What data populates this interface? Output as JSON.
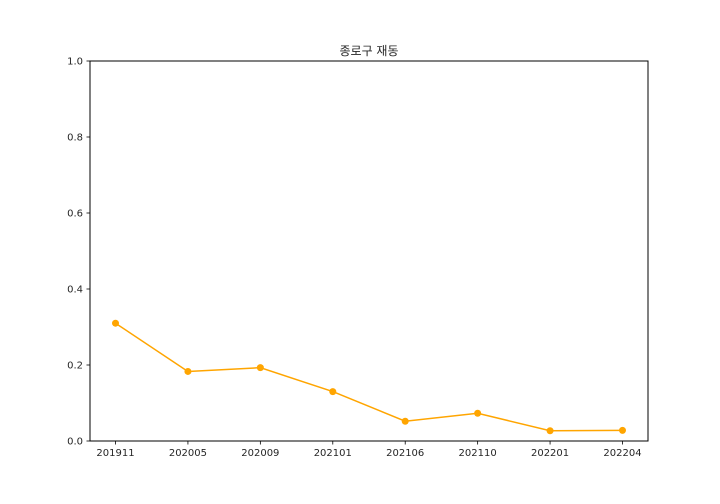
{
  "chart_data": {
    "type": "line",
    "title": "종로구 재동",
    "xlabel": "",
    "ylabel": "",
    "categories": [
      "201911",
      "202005",
      "202009",
      "202101",
      "202106",
      "202110",
      "202201",
      "202204"
    ],
    "series": [
      {
        "values": [
          0.31,
          0.183,
          0.193,
          0.13,
          0.052,
          0.073,
          0.027,
          0.028
        ]
      }
    ],
    "ylim": [
      0,
      1.0
    ],
    "yticks": [
      "0.0",
      "0.2",
      "0.4",
      "0.6",
      "0.8",
      "1.0"
    ],
    "grid": false,
    "line_color": "#FFA500"
  }
}
